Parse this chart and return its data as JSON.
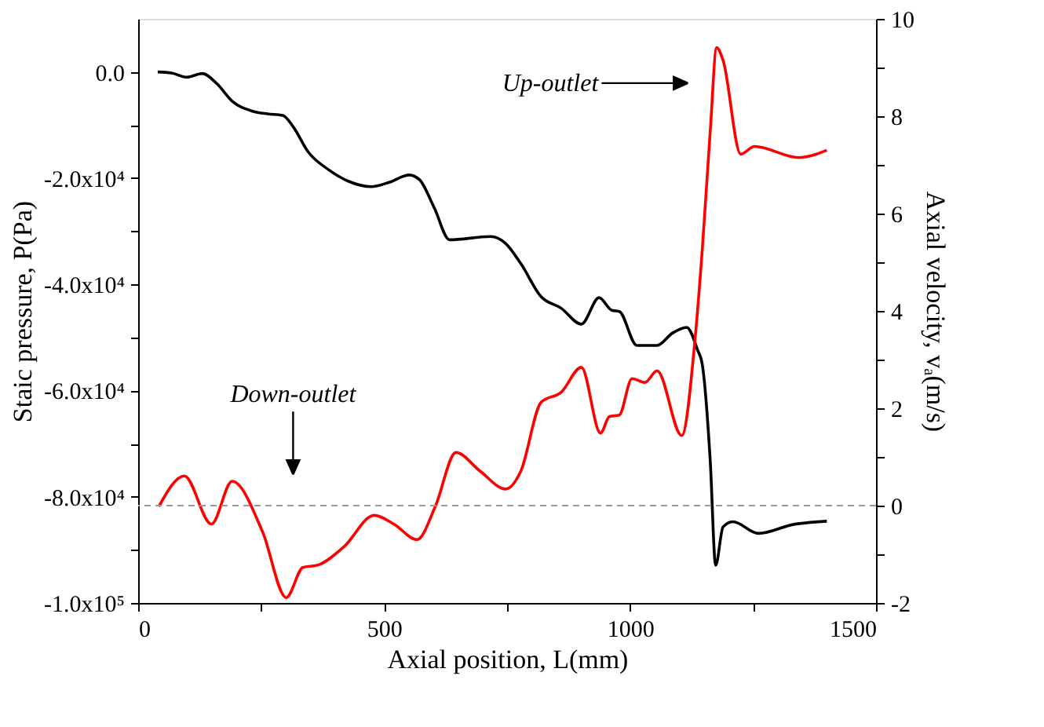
{
  "chart_data": {
    "type": "line",
    "xlabel": "Axial position, L(mm)",
    "ylabel": "Staic pressure, P(Pa)",
    "y2label": "Axial velocity, vₐ(m/s)",
    "xlim": [
      0,
      1500
    ],
    "xticks": [
      0,
      {
        "value": 250,
        "label": null
      },
      500,
      {
        "value": 750,
        "label": null
      },
      1000,
      {
        "value": 1250,
        "label": null
      },
      1500
    ],
    "ylim": [
      -100000,
      10000
    ],
    "yticks": [
      {
        "value": -100000,
        "label": "-1.0x10⁵"
      },
      {
        "value": -90000,
        "label": null
      },
      {
        "value": -80000,
        "label": "-8.0x10⁴"
      },
      {
        "value": -70000,
        "label": null
      },
      {
        "value": -60000,
        "label": "-6.0x10⁴"
      },
      {
        "value": -50000,
        "label": null
      },
      {
        "value": -40000,
        "label": "-4.0x10⁴"
      },
      {
        "value": -30000,
        "label": null
      },
      {
        "value": -20000,
        "label": "-2.0x10⁴"
      },
      {
        "value": -10000,
        "label": null
      },
      {
        "value": 0,
        "label": "0.0"
      }
    ],
    "y2lim": [
      -2,
      10
    ],
    "y2ticks": [
      -2,
      {
        "value": -1,
        "label": null
      },
      0,
      {
        "value": 1,
        "label": null
      },
      2,
      {
        "value": 3,
        "label": null
      },
      4,
      {
        "value": 5,
        "label": null
      },
      6,
      {
        "value": 7,
        "label": null
      },
      8,
      {
        "value": 9,
        "label": null
      },
      10
    ],
    "grid": false,
    "marker": "none",
    "line_style": "solid",
    "series": [
      {
        "color": "#000000",
        "x": [
          40,
          68,
          99,
          130,
          160,
          191,
          233,
          263,
          294,
          315,
          346,
          387,
          428,
          474,
          510,
          551,
          572,
          602,
          633,
          716,
          747,
          778,
          819,
          860,
          901,
          937,
          963,
          978,
          1014,
          1055,
          1086,
          1115,
          1137,
          1147,
          1163,
          1174,
          1189,
          1209,
          1261,
          1333,
          1400
        ],
        "values": [
          0,
          -200,
          -1000,
          -300,
          -2200,
          -5500,
          -7400,
          -7900,
          -8200,
          -10300,
          -15100,
          -18400,
          -20600,
          -21600,
          -20800,
          -19400,
          -20300,
          -25600,
          -31600,
          -31000,
          -32300,
          -36100,
          -42300,
          -44500,
          -47500,
          -42500,
          -44900,
          -45100,
          -51500,
          -51500,
          -49200,
          -48100,
          -52300,
          -55200,
          -73300,
          -92900,
          -85700,
          -84700,
          -86900,
          -85200,
          -84600
        ]
      },
      {
        "color": "#ff0000",
        "axis": "y2",
        "x": [
          42,
          94,
          149,
          191,
          253,
          301,
          335,
          366,
          418,
          480,
          520,
          567,
          604,
          646,
          695,
          747,
          778,
          819,
          860,
          901,
          940,
          958,
          978,
          1004,
          1030,
          1055,
          1105,
          1133,
          1147,
          1163,
          1176,
          1189,
          1225,
          1253,
          1343,
          1400
        ],
        "values": [
          -0.02,
          0.61,
          -0.38,
          0.5,
          -0.54,
          -1.89,
          -1.27,
          -1.22,
          -0.85,
          -0.2,
          -0.38,
          -0.7,
          -0.02,
          1.09,
          0.71,
          0.34,
          0.71,
          2.12,
          2.33,
          2.84,
          1.49,
          1.83,
          1.86,
          2.61,
          2.53,
          2.77,
          1.44,
          3.52,
          5.29,
          7.69,
          9.41,
          9.15,
          7.22,
          7.38,
          7.15,
          7.3
        ]
      }
    ],
    "ref_lines": [
      {
        "axis": "y2",
        "value": 0,
        "color": "#999999",
        "line_style": "dashed"
      }
    ],
    "annotations": [
      "Up-outlet",
      "Down-outlet"
    ]
  }
}
